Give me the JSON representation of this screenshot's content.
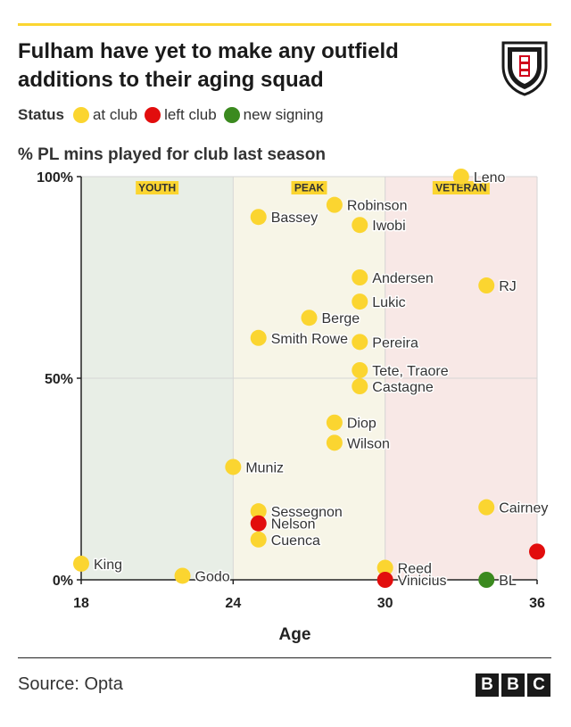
{
  "header": {
    "title": "Fulham have yet to make any outfield additions to their aging squad",
    "crest_icon": "fulham-crest-icon"
  },
  "legend": {
    "title": "Status",
    "items": [
      {
        "key": "at_club",
        "label": "at club",
        "color": "#fbd530"
      },
      {
        "key": "left_club",
        "label": "left club",
        "color": "#e20d0d"
      },
      {
        "key": "new_signing",
        "label": "new signing",
        "color": "#3b8a1f"
      }
    ]
  },
  "footer": {
    "source": "Source: Opta",
    "logo": [
      "B",
      "B",
      "C"
    ]
  },
  "chart_data": {
    "type": "scatter",
    "title": "Fulham have yet to make any outfield additions to their aging squad",
    "ylabel": "% PL mins played for club last season",
    "xlabel": "Age",
    "xlim": [
      18,
      36
    ],
    "ylim": [
      0,
      100
    ],
    "x_ticks": [
      18,
      24,
      30,
      36
    ],
    "y_ticks": [
      {
        "value": 0,
        "label": "0%"
      },
      {
        "value": 50,
        "label": "50%"
      },
      {
        "value": 100,
        "label": "100%"
      }
    ],
    "grid": true,
    "zones": [
      {
        "label": "YOUTH",
        "x_start": 18,
        "x_end": 24,
        "color": "#e8eee6"
      },
      {
        "label": "PEAK",
        "x_start": 24,
        "x_end": 30,
        "color": "#f7f5e7"
      },
      {
        "label": "VETERAN",
        "x_start": 30,
        "x_end": 36,
        "color": "#f8e8e6"
      }
    ],
    "zone_label_color": "#fbd530",
    "points": [
      {
        "label": "Leno",
        "x": 33,
        "y": 100,
        "status": "at_club"
      },
      {
        "label": "Robinson",
        "x": 28,
        "y": 93,
        "status": "at_club"
      },
      {
        "label": "Bassey",
        "x": 25,
        "y": 90,
        "status": "at_club"
      },
      {
        "label": "Iwobi",
        "x": 29,
        "y": 88,
        "status": "at_club"
      },
      {
        "label": "Andersen",
        "x": 29,
        "y": 75,
        "status": "at_club"
      },
      {
        "label": "RJ",
        "x": 34,
        "y": 73,
        "status": "at_club"
      },
      {
        "label": "Lukic",
        "x": 29,
        "y": 69,
        "status": "at_club"
      },
      {
        "label": "Berge",
        "x": 27,
        "y": 65,
        "status": "at_club"
      },
      {
        "label": "Smith Rowe",
        "x": 25,
        "y": 60,
        "status": "at_club"
      },
      {
        "label": "Pereira",
        "x": 29,
        "y": 59,
        "status": "at_club"
      },
      {
        "label": "Tete, Traore",
        "x": 29,
        "y": 52,
        "status": "at_club"
      },
      {
        "label": "Castagne",
        "x": 29,
        "y": 48,
        "status": "at_club"
      },
      {
        "label": "Diop",
        "x": 28,
        "y": 39,
        "status": "at_club"
      },
      {
        "label": "Wilson",
        "x": 28,
        "y": 34,
        "status": "at_club"
      },
      {
        "label": "Muniz",
        "x": 24,
        "y": 28,
        "status": "at_club"
      },
      {
        "label": "Cairney",
        "x": 34,
        "y": 18,
        "status": "at_club"
      },
      {
        "label": "Sessegnon",
        "x": 25,
        "y": 17,
        "status": "at_club"
      },
      {
        "label": "Nelson",
        "x": 25,
        "y": 14,
        "status": "left_club"
      },
      {
        "label": "Cuenca",
        "x": 25,
        "y": 10,
        "status": "at_club"
      },
      {
        "label": "",
        "x": 36,
        "y": 7,
        "status": "left_club"
      },
      {
        "label": "King",
        "x": 18,
        "y": 4,
        "status": "at_club"
      },
      {
        "label": "Reed",
        "x": 30,
        "y": 3,
        "status": "at_club"
      },
      {
        "label": "Godo",
        "x": 22,
        "y": 1,
        "status": "at_club"
      },
      {
        "label": "Vinicius",
        "x": 30,
        "y": 0,
        "status": "left_club"
      },
      {
        "label": "BL",
        "x": 34,
        "y": 0,
        "status": "new_signing"
      }
    ]
  }
}
